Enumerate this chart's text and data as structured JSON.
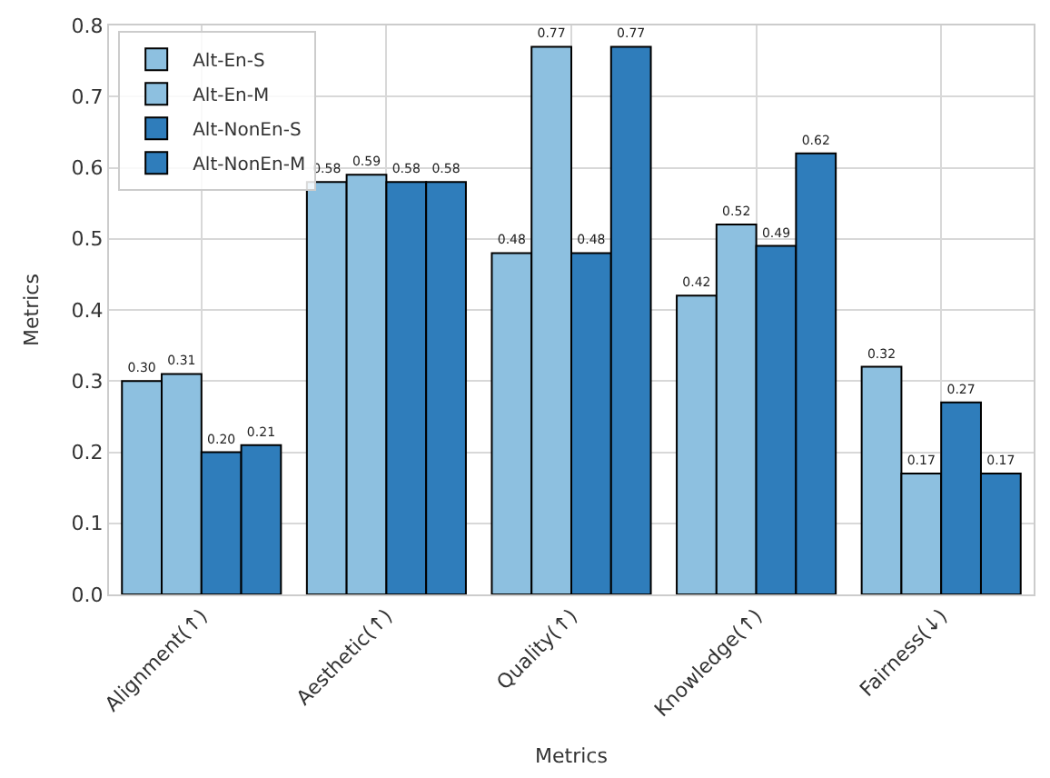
{
  "chart_data": {
    "type": "bar",
    "xlabel": "Metrics",
    "ylabel": "Metrics",
    "categories": [
      "Alignment(↑)",
      "Aesthetic(↑)",
      "Quality(↑)",
      "Knowledge(↑)",
      "Fairness(↓)"
    ],
    "series": [
      {
        "name": "Alt-En-S",
        "color": "#8dc0e0",
        "values": [
          0.3,
          0.58,
          0.48,
          0.42,
          0.32
        ],
        "value_labels": [
          "0.30",
          "0.58",
          "0.48",
          "0.42",
          "0.32"
        ]
      },
      {
        "name": "Alt-En-M",
        "color": "#8dc0e0",
        "values": [
          0.31,
          0.59,
          0.77,
          0.52,
          0.17
        ],
        "value_labels": [
          "0.31",
          "0.59",
          "0.77",
          "0.52",
          "0.17"
        ]
      },
      {
        "name": "Alt-NonEn-S",
        "color": "#2f7dbb",
        "values": [
          0.2,
          0.58,
          0.48,
          0.49,
          0.27
        ],
        "value_labels": [
          "0.20",
          "0.58",
          "0.48",
          "0.49",
          "0.27"
        ]
      },
      {
        "name": "Alt-NonEn-M",
        "color": "#2f7dbb",
        "values": [
          0.21,
          0.58,
          0.77,
          0.62,
          0.17
        ],
        "value_labels": [
          "0.21",
          "0.58",
          "0.77",
          "0.62",
          "0.17"
        ]
      }
    ],
    "ylim": [
      0,
      0.8
    ],
    "yticks": [
      {
        "value": 0,
        "label": "0.0"
      },
      {
        "value": 0.1,
        "label": "0.1"
      },
      {
        "value": 0.2,
        "label": "0.2"
      },
      {
        "value": 0.3,
        "label": "0.3"
      },
      {
        "value": 0.4,
        "label": "0.4"
      },
      {
        "value": 0.5,
        "label": "0.5"
      },
      {
        "value": 0.6,
        "label": "0.6"
      },
      {
        "value": 0.7,
        "label": "0.7"
      },
      {
        "value": 0.8,
        "label": "0.8"
      }
    ],
    "grid": true,
    "legend": "top left"
  }
}
